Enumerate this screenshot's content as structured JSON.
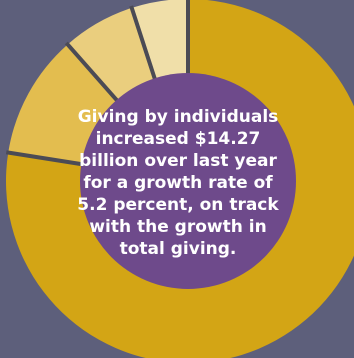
{
  "chart_data": {
    "type": "pie",
    "style": "donut",
    "values": [
      77.5,
      11.0,
      6.5,
      5.0
    ],
    "colors": [
      "#d3a515",
      "#e3bd4f",
      "#eace7e",
      "#f0dfa9"
    ],
    "center_color": "#6e4a8b",
    "separator_color": "#4b4b55",
    "background": "#5d5f7b",
    "center_text": "Giving by individuals increased $14.27 billion over last year for a growth rate of 5.2 percent, on track with the growth in total giving."
  }
}
